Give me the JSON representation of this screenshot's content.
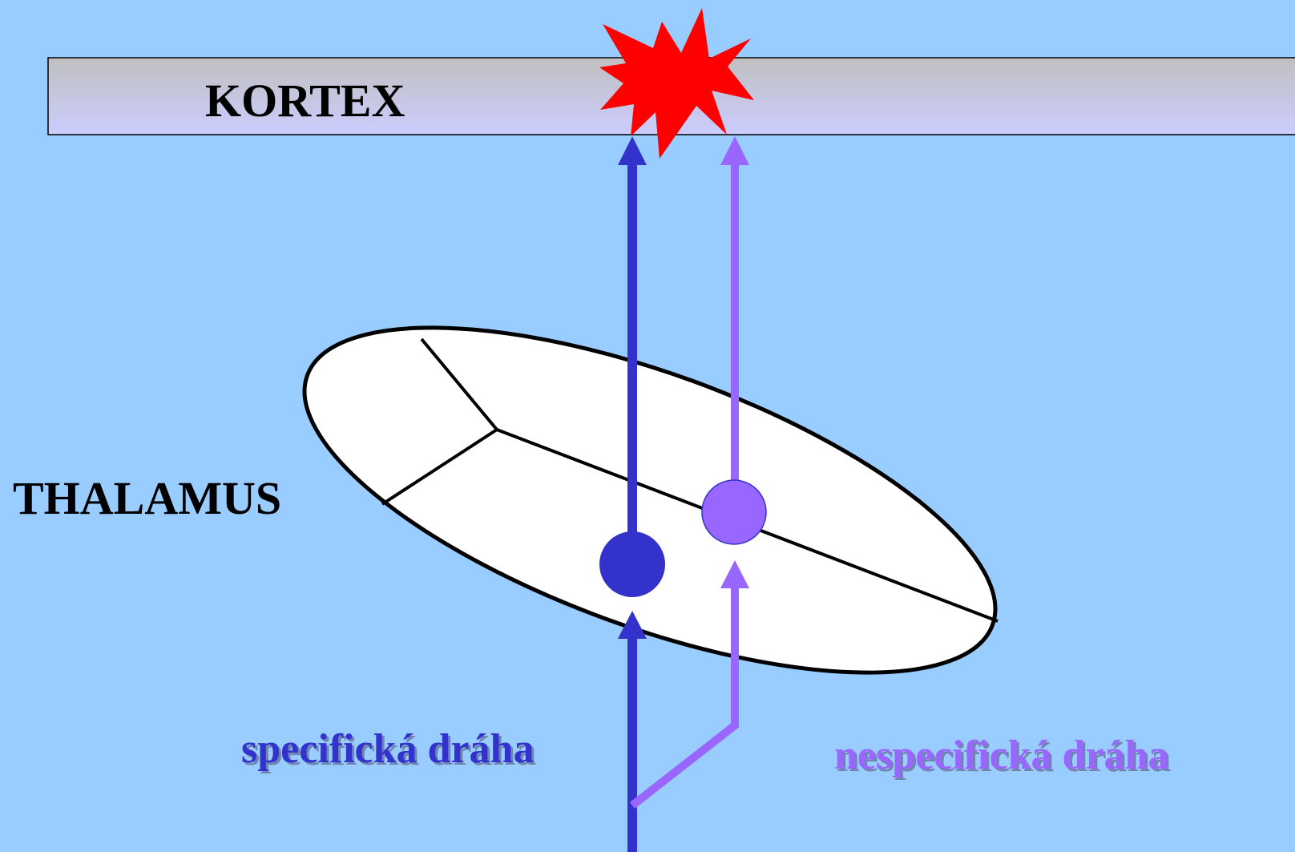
{
  "cortex": {
    "label": "KORTEX"
  },
  "thalamus": {
    "label": "THALAMUS"
  },
  "pathways": {
    "specific": "specifická dráha",
    "nonspecific": "nespecifická dráha"
  }
}
